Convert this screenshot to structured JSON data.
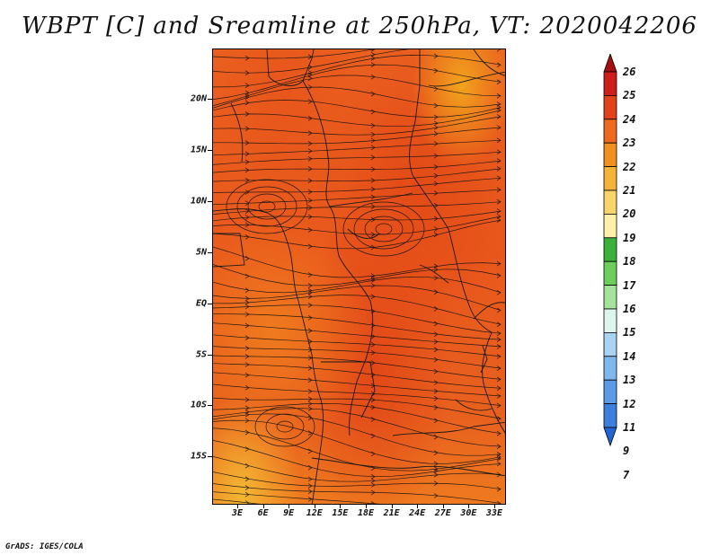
{
  "title": "WBPT [C] and Sreamline at 250hPa, VT: 2020042206",
  "credit": "GrADS: IGES/COLA",
  "map": {
    "y_ticks": [
      "20N",
      "15N",
      "10N",
      "5N",
      "EQ",
      "5S",
      "10S",
      "15S"
    ],
    "x_ticks": [
      "3E",
      "6E",
      "9E",
      "12E",
      "15E",
      "18E",
      "21E",
      "24E",
      "27E",
      "30E",
      "33E"
    ],
    "lat_range": [
      -20,
      25
    ],
    "lon_range": [
      0,
      35
    ],
    "field_name": "WBPT",
    "overlay": "streamlines",
    "dominant_colors": [
      "#e8601e",
      "#e34a17",
      "#f2a31d"
    ]
  },
  "legend": {
    "labels": [
      "26",
      "25",
      "24",
      "23",
      "22",
      "21",
      "20",
      "19",
      "18",
      "17",
      "16",
      "15",
      "14",
      "13",
      "12",
      "11",
      "9",
      "7"
    ],
    "colors": [
      "#a50f0f",
      "#cf1c1c",
      "#e2411a",
      "#ed6a1e",
      "#f0901f",
      "#f5b33a",
      "#f8d56a",
      "#fdf0a8",
      "#3bb13a",
      "#6ccf5b",
      "#a6e39a",
      "#def5ee",
      "#a9d3f3",
      "#7fb8ee",
      "#5a9ae6",
      "#3d7fdd",
      "#2366d3"
    ]
  }
}
